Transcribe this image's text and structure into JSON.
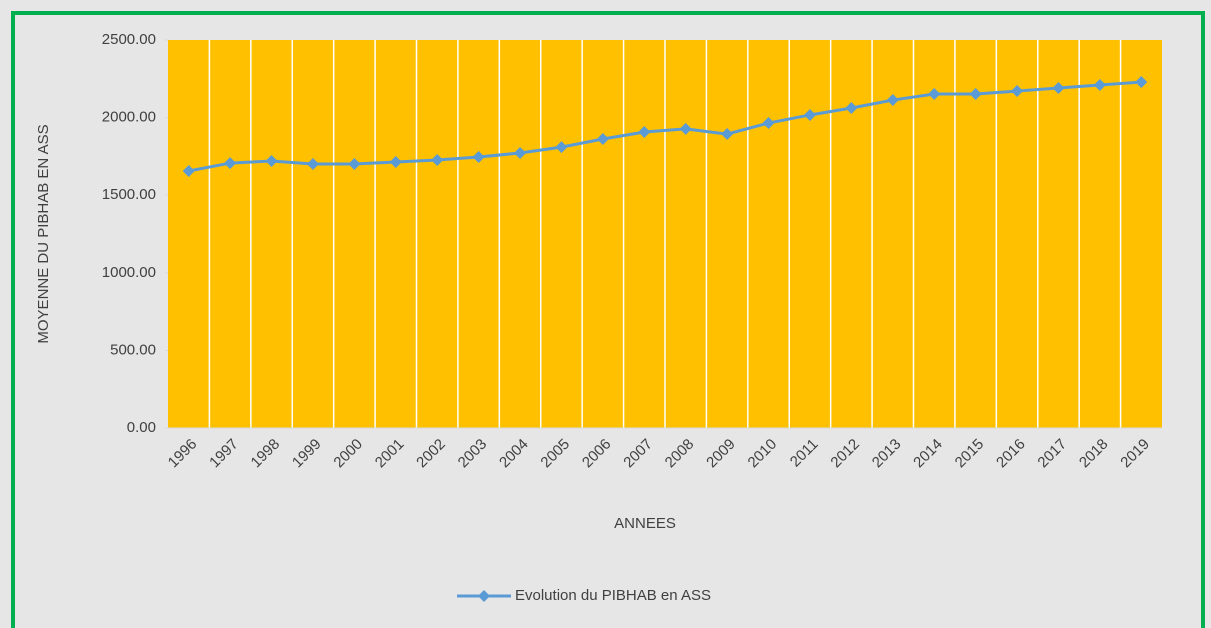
{
  "chart_data": {
    "type": "line",
    "x_label": "ANNEES",
    "y_label": "MOYENNE DU PIBHAB EN ASS",
    "categories": [
      "1996",
      "1997",
      "1998",
      "1999",
      "2000",
      "2001",
      "2002",
      "2003",
      "2004",
      "2005",
      "2006",
      "2007",
      "2008",
      "2009",
      "2010",
      "2011",
      "2012",
      "2013",
      "2014",
      "2015",
      "2016",
      "2017",
      "2018",
      "2019"
    ],
    "series": [
      {
        "name": "Evolution du PIBHAB en ASS",
        "color": "#5b9bd5",
        "values": [
          1656,
          1707,
          1720,
          1701,
          1701,
          1714,
          1727,
          1746,
          1772,
          1810,
          1862,
          1907,
          1927,
          1894,
          1965,
          2017,
          2062,
          2113,
          2152,
          2152,
          2171,
          2191,
          2210,
          2229
        ]
      }
    ],
    "ylim": [
      0,
      2500
    ],
    "yticks": [
      {
        "value": 0,
        "label": "0.00"
      },
      {
        "value": 500,
        "label": "500.00"
      },
      {
        "value": 1000,
        "label": "1000.00"
      },
      {
        "value": 1500,
        "label": "1500.00"
      },
      {
        "value": 2000,
        "label": "2000.00"
      },
      {
        "value": 2500,
        "label": "2500.00"
      }
    ],
    "plot_background": "#ffc000",
    "background": "#e7e6e6",
    "category_grid": true,
    "legend": "bottom"
  }
}
